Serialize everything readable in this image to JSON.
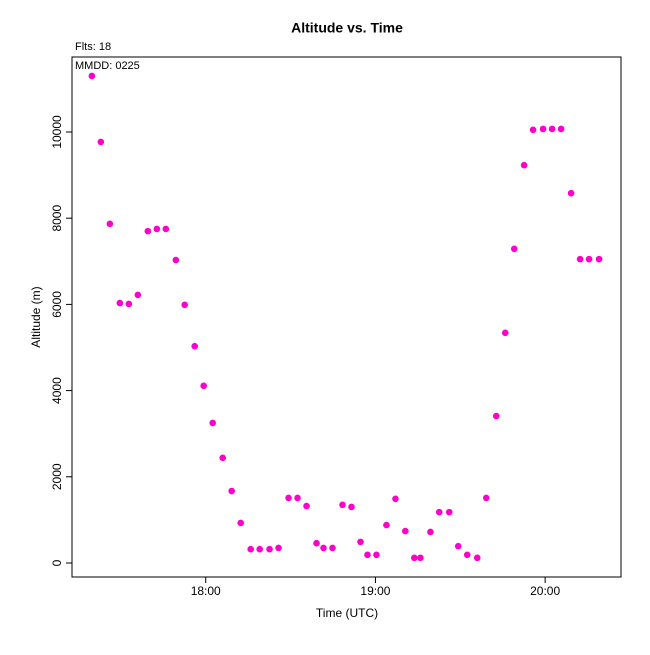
{
  "chart_data": {
    "type": "scatter",
    "title": "Altitude  vs. Time",
    "subtitle": "Flts: 18",
    "annotation": "MMDD: 0225",
    "x_label": "Time (UTC)",
    "y_label": "Altitude (m)",
    "color": "#ff00cc",
    "x": [
      17.329,
      17.382,
      17.435,
      17.494,
      17.547,
      17.6,
      17.659,
      17.712,
      17.765,
      17.824,
      17.876,
      17.935,
      17.988,
      18.041,
      18.1,
      18.153,
      18.206,
      18.265,
      18.318,
      18.376,
      18.429,
      18.488,
      18.541,
      18.594,
      18.653,
      18.694,
      18.747,
      18.806,
      18.859,
      18.912,
      18.953,
      19.006,
      19.065,
      19.118,
      19.176,
      19.229,
      19.265,
      19.324,
      19.376,
      19.435,
      19.488,
      19.541,
      19.6,
      19.653,
      19.712,
      19.765,
      19.818,
      19.876,
      19.929,
      19.988,
      20.041,
      20.094,
      20.153,
      20.206,
      20.259,
      20.318
    ],
    "values": [
      11300,
      9770,
      7870,
      6030,
      6010,
      6220,
      7700,
      7750,
      7750,
      7030,
      5990,
      5030,
      4110,
      3250,
      2440,
      1670,
      930,
      320,
      320,
      320,
      350,
      1510,
      1510,
      1320,
      460,
      350,
      350,
      1350,
      1300,
      490,
      190,
      190,
      880,
      1490,
      740,
      120,
      120,
      720,
      1180,
      1180,
      390,
      190,
      120,
      1510,
      3410,
      5340,
      7290,
      9230,
      10050,
      10070,
      10070,
      10070,
      8580,
      7050,
      7050,
      7050
    ],
    "xlim": [
      17.212,
      20.447
    ],
    "ylim": [
      -325,
      11740
    ],
    "xticks": [
      {
        "value": 18,
        "label": "18:00"
      },
      {
        "value": 19,
        "label": "19:00"
      },
      {
        "value": 20,
        "label": "20:00"
      }
    ],
    "yticks": [
      0,
      2000,
      4000,
      6000,
      8000,
      10000
    ]
  }
}
